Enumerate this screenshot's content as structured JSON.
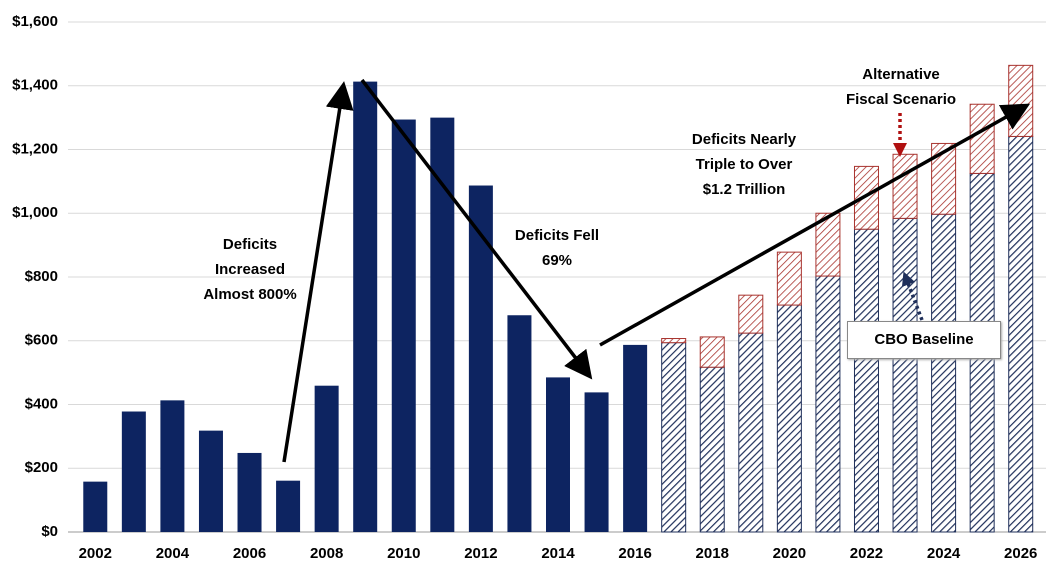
{
  "chart_data": {
    "type": "bar",
    "stacked": true,
    "categories": [
      "2002",
      null,
      "2004",
      null,
      "2006",
      null,
      "2008",
      null,
      "2010",
      null,
      "2012",
      null,
      "2014",
      null,
      "2016",
      null,
      "2018",
      null,
      "2020",
      null,
      "2022",
      null,
      "2024",
      null,
      "2026"
    ],
    "series": [
      {
        "color": "#0d2461",
        "hatch": false,
        "values": [
          158,
          378,
          413,
          318,
          248,
          161,
          459,
          1413,
          1294,
          1300,
          1087,
          680,
          485,
          438,
          587,
          null,
          null,
          null,
          null,
          null,
          null,
          null,
          null,
          null,
          null
        ]
      },
      {
        "name": "CBO Baseline",
        "color": "#1f2f5a",
        "hatch": true,
        "values": [
          null,
          null,
          null,
          null,
          null,
          null,
          null,
          null,
          null,
          null,
          null,
          null,
          null,
          null,
          null,
          594,
          517,
          624,
          712,
          803,
          950,
          984,
          997,
          1125,
          1241
        ]
      },
      {
        "name": "Alternative Fiscal Scenario",
        "color": "#a8332e",
        "hatch": true,
        "values": [
          null,
          null,
          null,
          null,
          null,
          null,
          null,
          null,
          null,
          null,
          null,
          null,
          null,
          null,
          null,
          13,
          95,
          119,
          166,
          197,
          197,
          201,
          222,
          217,
          223
        ]
      }
    ],
    "ylim": [
      0,
      1600
    ],
    "yticks": [
      {
        "value": 0,
        "label": "$0"
      },
      {
        "value": 200,
        "label": "$200"
      },
      {
        "value": 400,
        "label": "$400"
      },
      {
        "value": 600,
        "label": "$600"
      },
      {
        "value": 800,
        "label": "$800"
      },
      {
        "value": 1000,
        "label": "$1,000"
      },
      {
        "value": 1200,
        "label": "$1,200"
      },
      {
        "value": 1400,
        "label": "$1,400"
      },
      {
        "value": 1600,
        "label": "$1,600"
      }
    ],
    "grid": true,
    "annotations": [
      {
        "lines": [
          "Deficits",
          "Increased",
          "Almost 800%"
        ]
      },
      {
        "lines": [
          "Deficits Fell",
          "69%"
        ]
      },
      {
        "lines": [
          "Deficits Nearly",
          "Triple to Over",
          "$1.2 Trillion"
        ]
      }
    ]
  }
}
